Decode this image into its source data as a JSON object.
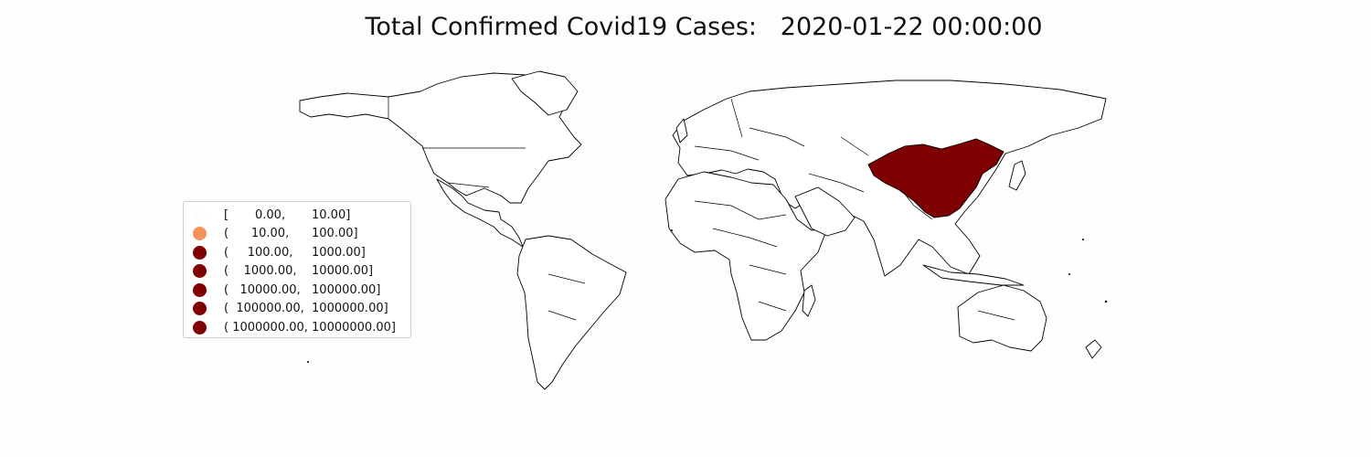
{
  "title": "Total Confirmed Covid19 Cases:   2020-01-22 00:00:00",
  "legend": [
    {
      "label": "[       0.00,       10.00]",
      "color": "#fefdfc"
    },
    {
      "label": "(      10.00,      100.00]",
      "color": "#f4925a"
    },
    {
      "label": "(     100.00,     1000.00]",
      "color": "#7f0000"
    },
    {
      "label": "(    1000.00,    10000.00]",
      "color": "#7f0000"
    },
    {
      "label": "(   10000.00,   100000.00]",
      "color": "#7f0000"
    },
    {
      "label": "(  100000.00,  1000000.00]",
      "color": "#7f0000"
    },
    {
      "label": "( 1000000.00, 10000000.00]",
      "color": "#7f0000"
    }
  ],
  "map": {
    "type": "choropleth",
    "highlighted_country": "China",
    "highlight_color": "#7f0000",
    "other_countries_color": "#ffffff"
  }
}
